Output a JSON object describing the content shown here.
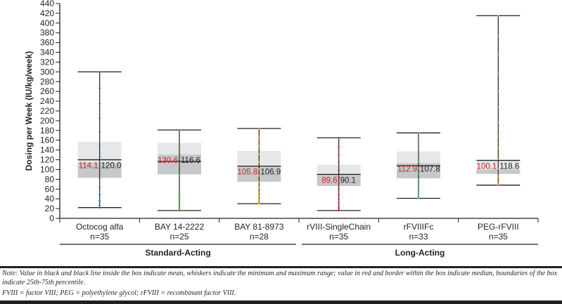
{
  "chart_data": {
    "type": "box",
    "title": "",
    "xlabel": "",
    "ylabel": "Dosing per Week (IU/kg/week)",
    "ylim": [
      0,
      440
    ],
    "yticks": [
      0,
      20,
      40,
      60,
      80,
      100,
      120,
      140,
      160,
      180,
      200,
      220,
      240,
      260,
      280,
      300,
      320,
      340,
      360,
      380,
      400,
      420,
      440
    ],
    "grid": false,
    "categories": [
      "Octocog alfa",
      "BAY 14-2222",
      "BAY 81-8973",
      "rVIII-SingleChain",
      "rFVIIIFc",
      "PEG-rFVIII"
    ],
    "n": [
      "n=35",
      "n=25",
      "n=28",
      "n=35",
      "n=33",
      "n=35"
    ],
    "groups": [
      {
        "label": "Standard-Acting",
        "members": [
          "Octocog alfa",
          "BAY 14-2222",
          "BAY 81-8973"
        ]
      },
      {
        "label": "Long-Acting",
        "members": [
          "rVIII-SingleChain",
          "rFVIIIFc",
          "PEG-rFVIII"
        ]
      }
    ],
    "series": [
      {
        "name": "Octocog alfa",
        "min": 22,
        "q1": 83,
        "median": 114.1,
        "mean": 120.0,
        "q3": 157,
        "max": 300,
        "point_color": "#2e6fb7"
      },
      {
        "name": "BAY 14-2222",
        "min": 16,
        "q1": 90,
        "median": 130.6,
        "mean": 116.6,
        "q3": 155,
        "max": 181,
        "point_color": "#3aaa35"
      },
      {
        "name": "BAY 81-8973",
        "min": 30,
        "q1": 75,
        "median": 105.8,
        "mean": 106.9,
        "q3": 138,
        "max": 184,
        "point_color": "#f0a500"
      },
      {
        "name": "rVIII-SingleChain",
        "min": 16,
        "q1": 66,
        "median": 89.6,
        "mean": 90.1,
        "q3": 110,
        "max": 165,
        "point_color": "#e0282e"
      },
      {
        "name": "rFVIIIFc",
        "min": 41,
        "q1": 82,
        "median": 112.9,
        "mean": 107.8,
        "q3": 137,
        "max": 175,
        "point_color": "#5cb85c"
      },
      {
        "name": "PEG-rFVIII",
        "min": 68,
        "q1": 91,
        "median": 100.1,
        "mean": 118.6,
        "q3": 121,
        "max": 415,
        "point_color": "#f08a24"
      }
    ],
    "legend": "none"
  },
  "labels": {
    "median_values": [
      "114.1",
      "130.6",
      "105.8",
      "89.6",
      "112.9",
      "100.1"
    ],
    "mean_values": [
      "120.0",
      "116.6",
      "106.9",
      "90.1",
      "107.8",
      "118.6"
    ]
  },
  "footnote": {
    "note": "Note: Value in black and black line inside the box indicate mean, whiskers indicate the minimum and maximum range; value in red and border within the box indicate median, boundaries of the box indicate 25th-75th percentile.",
    "abbreviations": "FVIII = factor VIII; PEG = polyethylene glycol; rFVIII = recombinant factor VIII."
  },
  "colors": {
    "box_upper": "#e6e7e8",
    "box_lower": "#c7c8ca",
    "median_text": "#d2232a",
    "axis": "#231f20"
  }
}
